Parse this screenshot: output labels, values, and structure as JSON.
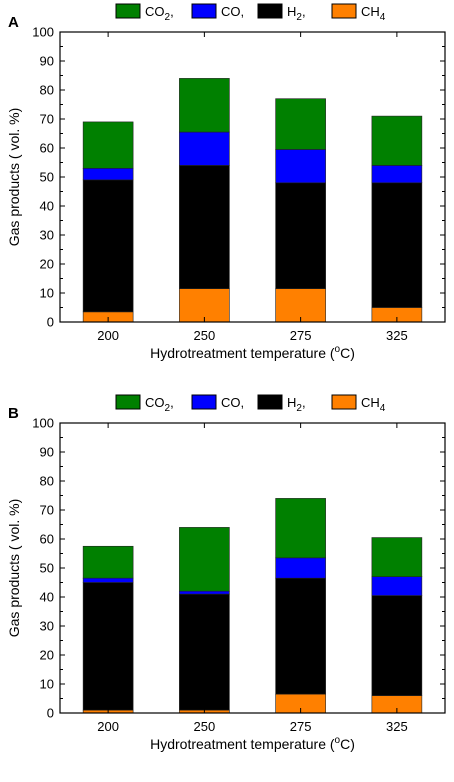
{
  "legend_sep": ",",
  "chart_data": [
    {
      "panel_label": "A",
      "type": "bar",
      "stacked": true,
      "categories": [
        "200",
        "250",
        "275",
        "325"
      ],
      "series": [
        {
          "name": "CH4",
          "color": "#ff8000",
          "values": [
            3.5,
            11.5,
            11.5,
            5
          ]
        },
        {
          "name": "H2",
          "color": "#000000",
          "values": [
            45.5,
            42.5,
            36.5,
            43
          ]
        },
        {
          "name": "CO",
          "color": "#0000ff",
          "values": [
            4,
            11.5,
            11.5,
            6
          ]
        },
        {
          "name": "CO2",
          "color": "#008000",
          "values": [
            16,
            18.5,
            17.5,
            17
          ]
        }
      ],
      "legend_order": [
        "CO2",
        "CO",
        "H2",
        "CH4"
      ],
      "xlabel": "Hydrotreatment temperature (°C)",
      "ylabel": "Gas products ( vol. %)",
      "ylim": [
        0,
        100
      ],
      "yticks": [
        "0",
        "10",
        "20",
        "30",
        "40",
        "50",
        "60",
        "70",
        "80",
        "90",
        "100"
      ],
      "legend_position": "top",
      "grid": false
    },
    {
      "panel_label": "B",
      "type": "bar",
      "stacked": true,
      "categories": [
        "200",
        "250",
        "275",
        "325"
      ],
      "series": [
        {
          "name": "CH4",
          "color": "#ff8000",
          "values": [
            1,
            1,
            6.5,
            6
          ]
        },
        {
          "name": "H2",
          "color": "#000000",
          "values": [
            44,
            40,
            40,
            34.5
          ]
        },
        {
          "name": "CO",
          "color": "#0000ff",
          "values": [
            1.5,
            1,
            7,
            6.5
          ]
        },
        {
          "name": "CO2",
          "color": "#008000",
          "values": [
            11,
            22,
            20.5,
            13.5
          ]
        }
      ],
      "legend_order": [
        "CO2",
        "CO",
        "H2",
        "CH4"
      ],
      "xlabel": "Hydrotreatment temperature (°C)",
      "ylabel": "Gas products ( vol. %)",
      "ylim": [
        0,
        100
      ],
      "yticks": [
        "0",
        "10",
        "20",
        "30",
        "40",
        "50",
        "60",
        "70",
        "80",
        "90",
        "100"
      ],
      "legend_position": "top",
      "grid": false
    }
  ]
}
